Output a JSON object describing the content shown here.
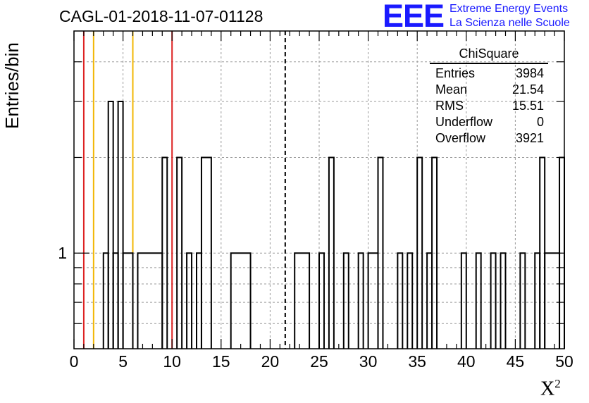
{
  "chart_data": {
    "type": "bar",
    "title": "CAGL-01-2018-11-07-01128",
    "xlabel": "X",
    "xlabel_superscript": "2",
    "ylabel": "Entries/bin",
    "xlim": [
      0,
      50
    ],
    "ylim": [
      0.5,
      5
    ],
    "yscale": "log",
    "grid": true,
    "bin_width": 0.5,
    "x_ticks": [
      "0",
      "5",
      "10",
      "15",
      "20",
      "25",
      "30",
      "35",
      "40",
      "45",
      "50"
    ],
    "y_ticks": [
      "1"
    ],
    "bins": [
      {
        "x0": 3.0,
        "x1": 3.5,
        "y": 1
      },
      {
        "x0": 3.5,
        "x1": 4.0,
        "y": 3
      },
      {
        "x0": 4.0,
        "x1": 4.5,
        "y": 1
      },
      {
        "x0": 4.5,
        "x1": 5.0,
        "y": 3
      },
      {
        "x0": 5.0,
        "x1": 6.0,
        "y": 1
      },
      {
        "x0": 6.5,
        "x1": 9.0,
        "y": 1
      },
      {
        "x0": 9.0,
        "x1": 9.5,
        "y": 2
      },
      {
        "x0": 10.5,
        "x1": 11.0,
        "y": 2
      },
      {
        "x0": 11.5,
        "x1": 12.0,
        "y": 1
      },
      {
        "x0": 12.5,
        "x1": 13.0,
        "y": 1
      },
      {
        "x0": 13.0,
        "x1": 14.0,
        "y": 2
      },
      {
        "x0": 16.0,
        "x1": 18.0,
        "y": 1
      },
      {
        "x0": 22.5,
        "x1": 24.0,
        "y": 1
      },
      {
        "x0": 25.0,
        "x1": 25.5,
        "y": 1
      },
      {
        "x0": 26.0,
        "x1": 26.5,
        "y": 2
      },
      {
        "x0": 27.5,
        "x1": 28.0,
        "y": 1
      },
      {
        "x0": 29.0,
        "x1": 29.5,
        "y": 1
      },
      {
        "x0": 30.0,
        "x1": 31.0,
        "y": 1
      },
      {
        "x0": 31.0,
        "x1": 31.5,
        "y": 2
      },
      {
        "x0": 33.0,
        "x1": 33.5,
        "y": 1
      },
      {
        "x0": 34.0,
        "x1": 34.5,
        "y": 1
      },
      {
        "x0": 35.0,
        "x1": 35.5,
        "y": 2
      },
      {
        "x0": 36.0,
        "x1": 36.5,
        "y": 1
      },
      {
        "x0": 36.5,
        "x1": 37.0,
        "y": 2
      },
      {
        "x0": 39.5,
        "x1": 40.0,
        "y": 1
      },
      {
        "x0": 41.0,
        "x1": 41.5,
        "y": 1
      },
      {
        "x0": 42.5,
        "x1": 43.0,
        "y": 1
      },
      {
        "x0": 43.5,
        "x1": 44.0,
        "y": 1
      },
      {
        "x0": 45.5,
        "x1": 46.0,
        "y": 1
      },
      {
        "x0": 47.0,
        "x1": 47.5,
        "y": 1
      },
      {
        "x0": 47.5,
        "x1": 48.0,
        "y": 2
      },
      {
        "x0": 48.0,
        "x1": 49.5,
        "y": 1
      },
      {
        "x0": 49.5,
        "x1": 50.0,
        "y": 2
      }
    ],
    "vertical_lines": [
      {
        "x": 1,
        "color": "#dd2222",
        "style": "solid"
      },
      {
        "x": 2,
        "color": "#f2b705",
        "style": "solid"
      },
      {
        "x": 6,
        "color": "#f2b705",
        "style": "solid"
      },
      {
        "x": 10,
        "color": "#dd2222",
        "style": "solid"
      },
      {
        "x": 21.54,
        "color": "#000000",
        "style": "dashed"
      }
    ],
    "stats_box": {
      "title": "ChiSquare",
      "rows": [
        {
          "label": "Entries",
          "value": "3984"
        },
        {
          "label": "Mean",
          "value": "21.54"
        },
        {
          "label": "RMS",
          "value": "15.51"
        },
        {
          "label": "Underflow",
          "value": "0"
        },
        {
          "label": "Overflow",
          "value": "3921"
        }
      ]
    }
  },
  "logo": {
    "mark": "EEE",
    "line1": "Extreme Energy Events",
    "line2": "La Scienza nelle Scuole",
    "color": "#1a1aff"
  }
}
